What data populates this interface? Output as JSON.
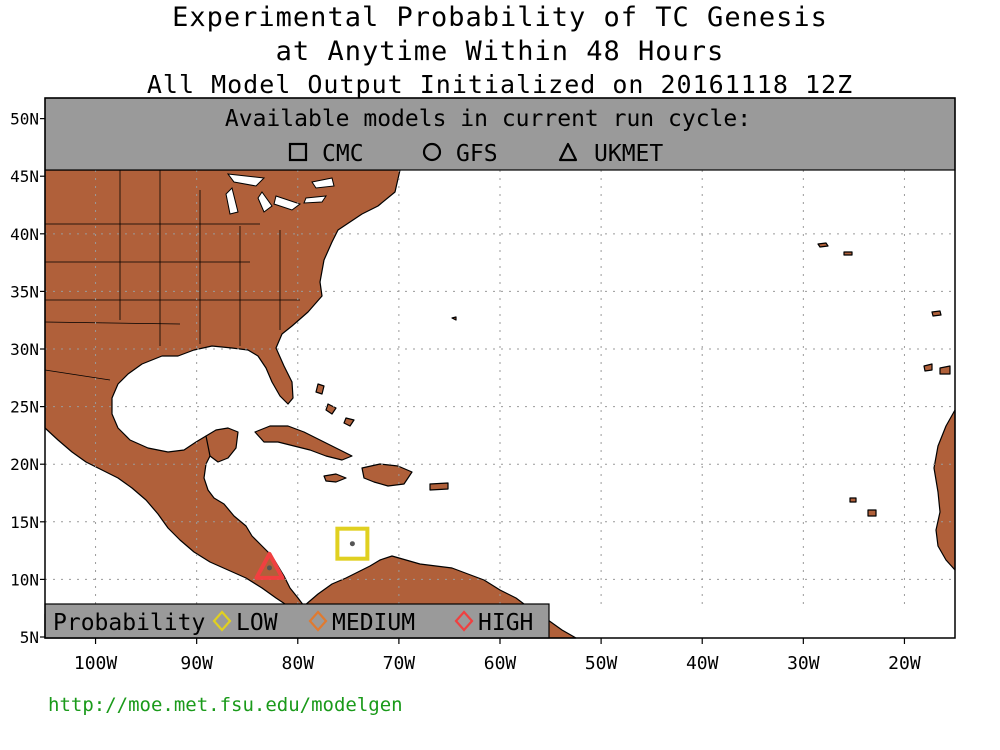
{
  "title": {
    "line1": "Experimental Probability of TC Genesis",
    "line2": "at Anytime Within 48 Hours",
    "line3": "All Model Output Initialized on 20161118 12Z"
  },
  "models_panel": {
    "heading": "Available models in current run cycle:",
    "models": [
      {
        "name": "CMC",
        "symbol": "square"
      },
      {
        "name": "GFS",
        "symbol": "circle"
      },
      {
        "name": "UKMET",
        "symbol": "triangle"
      }
    ]
  },
  "legend": {
    "label": "Probability",
    "levels": [
      {
        "name": "LOW",
        "color": "#e0d020"
      },
      {
        "name": "MEDIUM",
        "color": "#e07a30"
      },
      {
        "name": "HIGH",
        "color": "#f04040"
      }
    ]
  },
  "axes": {
    "lat_labels": [
      "50N",
      "45N",
      "40N",
      "35N",
      "30N",
      "25N",
      "20N",
      "15N",
      "10N",
      "5N"
    ],
    "lon_labels": [
      "100W",
      "90W",
      "80W",
      "70W",
      "60W",
      "50W",
      "40W",
      "30W",
      "20W"
    ]
  },
  "colors": {
    "land": "#b0603a",
    "ocean": "#ffffff",
    "panel": "#9a9a9a"
  },
  "markers": [
    {
      "model": "CMC",
      "symbol": "square",
      "probability": "LOW",
      "lon": -74.6,
      "lat": 13.1
    },
    {
      "model": "UKMET",
      "symbol": "triangle",
      "probability": "HIGH",
      "lon": -82.8,
      "lat": 11.0
    }
  ],
  "url": "http://moe.met.fsu.edu/modelgen"
}
